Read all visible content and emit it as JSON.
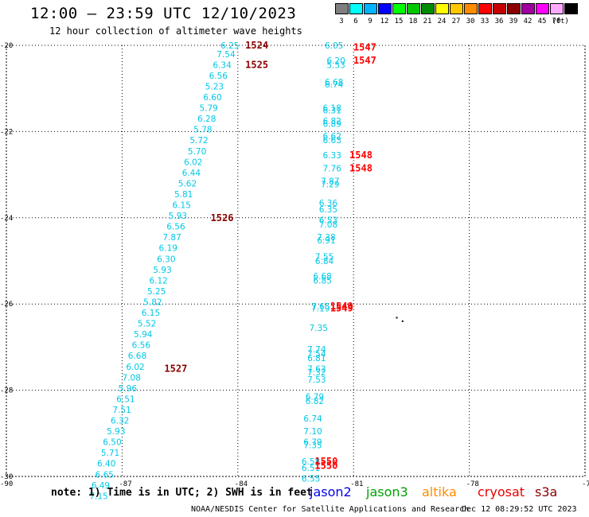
{
  "title": "12:00 – 23:59 UTC 12/10/2023",
  "subtitle": "12 hour collection of altimeter wave heights",
  "legend": {
    "unit": "(ft)",
    "items": [
      {
        "label": "3",
        "color": "#7f7f7f"
      },
      {
        "label": "6",
        "color": "#00ffff"
      },
      {
        "label": "9",
        "color": "#00b4ff"
      },
      {
        "label": "12",
        "color": "#0000ff"
      },
      {
        "label": "15",
        "color": "#00ff00"
      },
      {
        "label": "18",
        "color": "#00c800"
      },
      {
        "label": "21",
        "color": "#008c00"
      },
      {
        "label": "24",
        "color": "#ffff00"
      },
      {
        "label": "27",
        "color": "#ffc800"
      },
      {
        "label": "30",
        "color": "#ff8c00"
      },
      {
        "label": "33",
        "color": "#ff0000"
      },
      {
        "label": "36",
        "color": "#c80000"
      },
      {
        "label": "39",
        "color": "#8c0000"
      },
      {
        "label": "42",
        "color": "#a000a0"
      },
      {
        "label": "45",
        "color": "#ff00ff"
      },
      {
        "label": "70",
        "color": "#ffaaff"
      },
      {
        "label": "",
        "color": "#000000"
      }
    ]
  },
  "axes": {
    "lon_ticks": [
      "-90",
      "-87",
      "-84",
      "-81",
      "-78",
      "-75"
    ],
    "lat_ticks": [
      "-20",
      "-22",
      "-24",
      "-26",
      "-28",
      "-30"
    ],
    "lon_range": [
      -90,
      -75
    ],
    "lat_range": [
      -30,
      -20
    ]
  },
  "passes": [
    {
      "id": "1524",
      "color": "#8b0000",
      "lon": -83.6,
      "lat": -20.0
    },
    {
      "id": "1525",
      "color": "#8b0000",
      "lon": -83.6,
      "lat": -20.45
    },
    {
      "id": "1526",
      "color": "#8b0000",
      "lon": -84.5,
      "lat": -24.0
    },
    {
      "id": "1527",
      "color": "#8b0000",
      "lon": -85.7,
      "lat": -27.5
    },
    {
      "id": "1547",
      "color": "#ff0000",
      "lon": -80.8,
      "lat": -20.05
    },
    {
      "id": "1547",
      "color": "#ff0000",
      "lon": -80.8,
      "lat": -20.35
    },
    {
      "id": "1548",
      "color": "#ff0000",
      "lon": -80.9,
      "lat": -22.55
    },
    {
      "id": "1548",
      "color": "#ff0000",
      "lon": -80.9,
      "lat": -22.85
    },
    {
      "id": "1549",
      "color": "#ff0000",
      "lon": -81.4,
      "lat": -26.05
    },
    {
      "id": "1549",
      "color": "#ff0000",
      "lon": -81.4,
      "lat": -26.1
    },
    {
      "id": "1550",
      "color": "#ff0000",
      "lon": -81.8,
      "lat": -29.65
    },
    {
      "id": "1550",
      "color": "#ff0000",
      "lon": -81.8,
      "lat": -29.75
    }
  ],
  "west_track": {
    "color": "#00c8e6",
    "points": [
      {
        "lon": -84.2,
        "lat": -20.0,
        "swh": "6.25"
      },
      {
        "lon": -84.3,
        "lat": -20.2,
        "swh": "7.54"
      },
      {
        "lon": -84.4,
        "lat": -20.45,
        "swh": "6.34"
      },
      {
        "lon": -84.5,
        "lat": -20.7,
        "swh": "6.56"
      },
      {
        "lon": -84.6,
        "lat": -20.95,
        "swh": "5.23"
      },
      {
        "lon": -84.65,
        "lat": -21.2,
        "swh": "6.60"
      },
      {
        "lon": -84.75,
        "lat": -21.45,
        "swh": "5.79"
      },
      {
        "lon": -84.8,
        "lat": -21.7,
        "swh": "6.28"
      },
      {
        "lon": -84.9,
        "lat": -21.95,
        "swh": "5.78"
      },
      {
        "lon": -85.0,
        "lat": -22.2,
        "swh": "5.72"
      },
      {
        "lon": -85.05,
        "lat": -22.45,
        "swh": "5.70"
      },
      {
        "lon": -85.15,
        "lat": -22.7,
        "swh": "6.02"
      },
      {
        "lon": -85.2,
        "lat": -22.95,
        "swh": "6.44"
      },
      {
        "lon": -85.3,
        "lat": -23.2,
        "swh": "5.62"
      },
      {
        "lon": -85.4,
        "lat": -23.45,
        "swh": "5.81"
      },
      {
        "lon": -85.45,
        "lat": -23.7,
        "swh": "6.15"
      },
      {
        "lon": -85.55,
        "lat": -23.95,
        "swh": "5.93"
      },
      {
        "lon": -85.6,
        "lat": -24.2,
        "swh": "6.56"
      },
      {
        "lon": -85.7,
        "lat": -24.45,
        "swh": "7.87"
      },
      {
        "lon": -85.8,
        "lat": -24.7,
        "swh": "6.19"
      },
      {
        "lon": -85.85,
        "lat": -24.95,
        "swh": "6.30"
      },
      {
        "lon": -85.95,
        "lat": -25.2,
        "swh": "5.93"
      },
      {
        "lon": -86.05,
        "lat": -25.45,
        "swh": "6.12"
      },
      {
        "lon": -86.1,
        "lat": -25.7,
        "swh": "5.25"
      },
      {
        "lon": -86.2,
        "lat": -25.95,
        "swh": "5.82"
      },
      {
        "lon": -86.25,
        "lat": -26.2,
        "swh": "6.15"
      },
      {
        "lon": -86.35,
        "lat": -26.45,
        "swh": "5.52"
      },
      {
        "lon": -86.45,
        "lat": -26.7,
        "swh": "5.94"
      },
      {
        "lon": -86.5,
        "lat": -26.95,
        "swh": "6.56"
      },
      {
        "lon": -86.6,
        "lat": -27.2,
        "swh": "6.68"
      },
      {
        "lon": -86.65,
        "lat": -27.45,
        "swh": "6.02"
      },
      {
        "lon": -86.75,
        "lat": -27.7,
        "swh": "7.08"
      },
      {
        "lon": -86.85,
        "lat": -27.95,
        "swh": "5.96"
      },
      {
        "lon": -86.9,
        "lat": -28.2,
        "swh": "6.51"
      },
      {
        "lon": -87.0,
        "lat": -28.45,
        "swh": "7.51"
      },
      {
        "lon": -87.05,
        "lat": -28.7,
        "swh": "6.32"
      },
      {
        "lon": -87.15,
        "lat": -28.95,
        "swh": "5.93"
      },
      {
        "lon": -87.25,
        "lat": -29.2,
        "swh": "6.50"
      },
      {
        "lon": -87.3,
        "lat": -29.45,
        "swh": "5.71"
      },
      {
        "lon": -87.4,
        "lat": -29.7,
        "swh": "6.40"
      },
      {
        "lon": -87.45,
        "lat": -29.95,
        "swh": "6.65"
      },
      {
        "lon": -87.55,
        "lat": -30.2,
        "swh": "6.49"
      },
      {
        "lon": -87.6,
        "lat": -30.45,
        "swh": "7.15"
      }
    ]
  },
  "east_track": {
    "color": "#00c8e6",
    "points": [
      {
        "lon": -81.5,
        "lat": -20.0,
        "swh": "6.05"
      },
      {
        "lon": -81.45,
        "lat": -20.35,
        "swh": "6.20"
      },
      {
        "lon": -81.45,
        "lat": -20.45,
        "swh": "5.53"
      },
      {
        "lon": -81.5,
        "lat": -20.85,
        "swh": "6.68"
      },
      {
        "lon": -81.5,
        "lat": -20.9,
        "swh": "6.74"
      },
      {
        "lon": -81.55,
        "lat": -21.45,
        "swh": "6.18"
      },
      {
        "lon": -81.55,
        "lat": -21.5,
        "swh": "6.31"
      },
      {
        "lon": -81.55,
        "lat": -21.75,
        "swh": "6.82"
      },
      {
        "lon": -81.55,
        "lat": -21.82,
        "swh": "6.89"
      },
      {
        "lon": -81.55,
        "lat": -22.1,
        "swh": "6.62"
      },
      {
        "lon": -81.55,
        "lat": -22.2,
        "swh": "6.63"
      },
      {
        "lon": -81.55,
        "lat": -22.55,
        "swh": "6.33"
      },
      {
        "lon": -81.55,
        "lat": -22.85,
        "swh": "7.76"
      },
      {
        "lon": -81.6,
        "lat": -23.15,
        "swh": "7.87"
      },
      {
        "lon": -81.6,
        "lat": -23.22,
        "swh": "7.29"
      },
      {
        "lon": -81.65,
        "lat": -23.65,
        "swh": "6.36"
      },
      {
        "lon": -81.65,
        "lat": -23.8,
        "swh": "6.35"
      },
      {
        "lon": -81.65,
        "lat": -24.05,
        "swh": "6.53"
      },
      {
        "lon": -81.65,
        "lat": -24.15,
        "swh": "7.08"
      },
      {
        "lon": -81.7,
        "lat": -24.45,
        "swh": "7.38"
      },
      {
        "lon": -81.7,
        "lat": -24.52,
        "swh": "6.91"
      },
      {
        "lon": -81.75,
        "lat": -24.9,
        "swh": "7.55"
      },
      {
        "lon": -81.75,
        "lat": -25.0,
        "swh": "6.84"
      },
      {
        "lon": -81.8,
        "lat": -25.35,
        "swh": "6.68"
      },
      {
        "lon": -81.8,
        "lat": -25.45,
        "swh": "6.85"
      },
      {
        "lon": -81.85,
        "lat": -26.05,
        "swh": "7.65"
      },
      {
        "lon": -81.85,
        "lat": -26.1,
        "swh": "7.19"
      },
      {
        "lon": -81.9,
        "lat": -26.55,
        "swh": "7.35"
      },
      {
        "lon": -81.95,
        "lat": -27.05,
        "swh": "7.74"
      },
      {
        "lon": -81.95,
        "lat": -27.15,
        "swh": "7.54"
      },
      {
        "lon": -81.95,
        "lat": -27.25,
        "swh": "6.81"
      },
      {
        "lon": -81.95,
        "lat": -27.5,
        "swh": "7.63"
      },
      {
        "lon": -81.95,
        "lat": -27.58,
        "swh": "7.32"
      },
      {
        "lon": -81.95,
        "lat": -27.75,
        "swh": "7.53"
      },
      {
        "lon": -82.0,
        "lat": -28.15,
        "swh": "6.79"
      },
      {
        "lon": -82.0,
        "lat": -28.25,
        "swh": "6.82"
      },
      {
        "lon": -82.05,
        "lat": -28.65,
        "swh": "6.74"
      },
      {
        "lon": -82.05,
        "lat": -28.95,
        "swh": "7.10"
      },
      {
        "lon": -82.05,
        "lat": -29.2,
        "swh": "6.79"
      },
      {
        "lon": -82.05,
        "lat": -29.27,
        "swh": "7.35"
      },
      {
        "lon": -82.1,
        "lat": -29.65,
        "swh": "6.58"
      },
      {
        "lon": -82.1,
        "lat": -29.8,
        "swh": "6.51"
      },
      {
        "lon": -82.1,
        "lat": -30.05,
        "swh": "6.55"
      }
    ]
  },
  "note": "note: 1) Time is in UTC; 2) SWH is in feet",
  "satellites": [
    {
      "name": "jason2",
      "color": "#0000e6"
    },
    {
      "name": "jason3",
      "color": "#00a000"
    },
    {
      "name": "altika",
      "color": "#ff8c00"
    },
    {
      "name": "cryosat",
      "color": "#e60000"
    },
    {
      "name": "s3a",
      "color": "#8b0000"
    }
  ],
  "footer": {
    "credit": "NOAA/NESDIS Center for Satellite Applications and Research",
    "date": "Dec 12 08:29:52 UTC 2023"
  }
}
